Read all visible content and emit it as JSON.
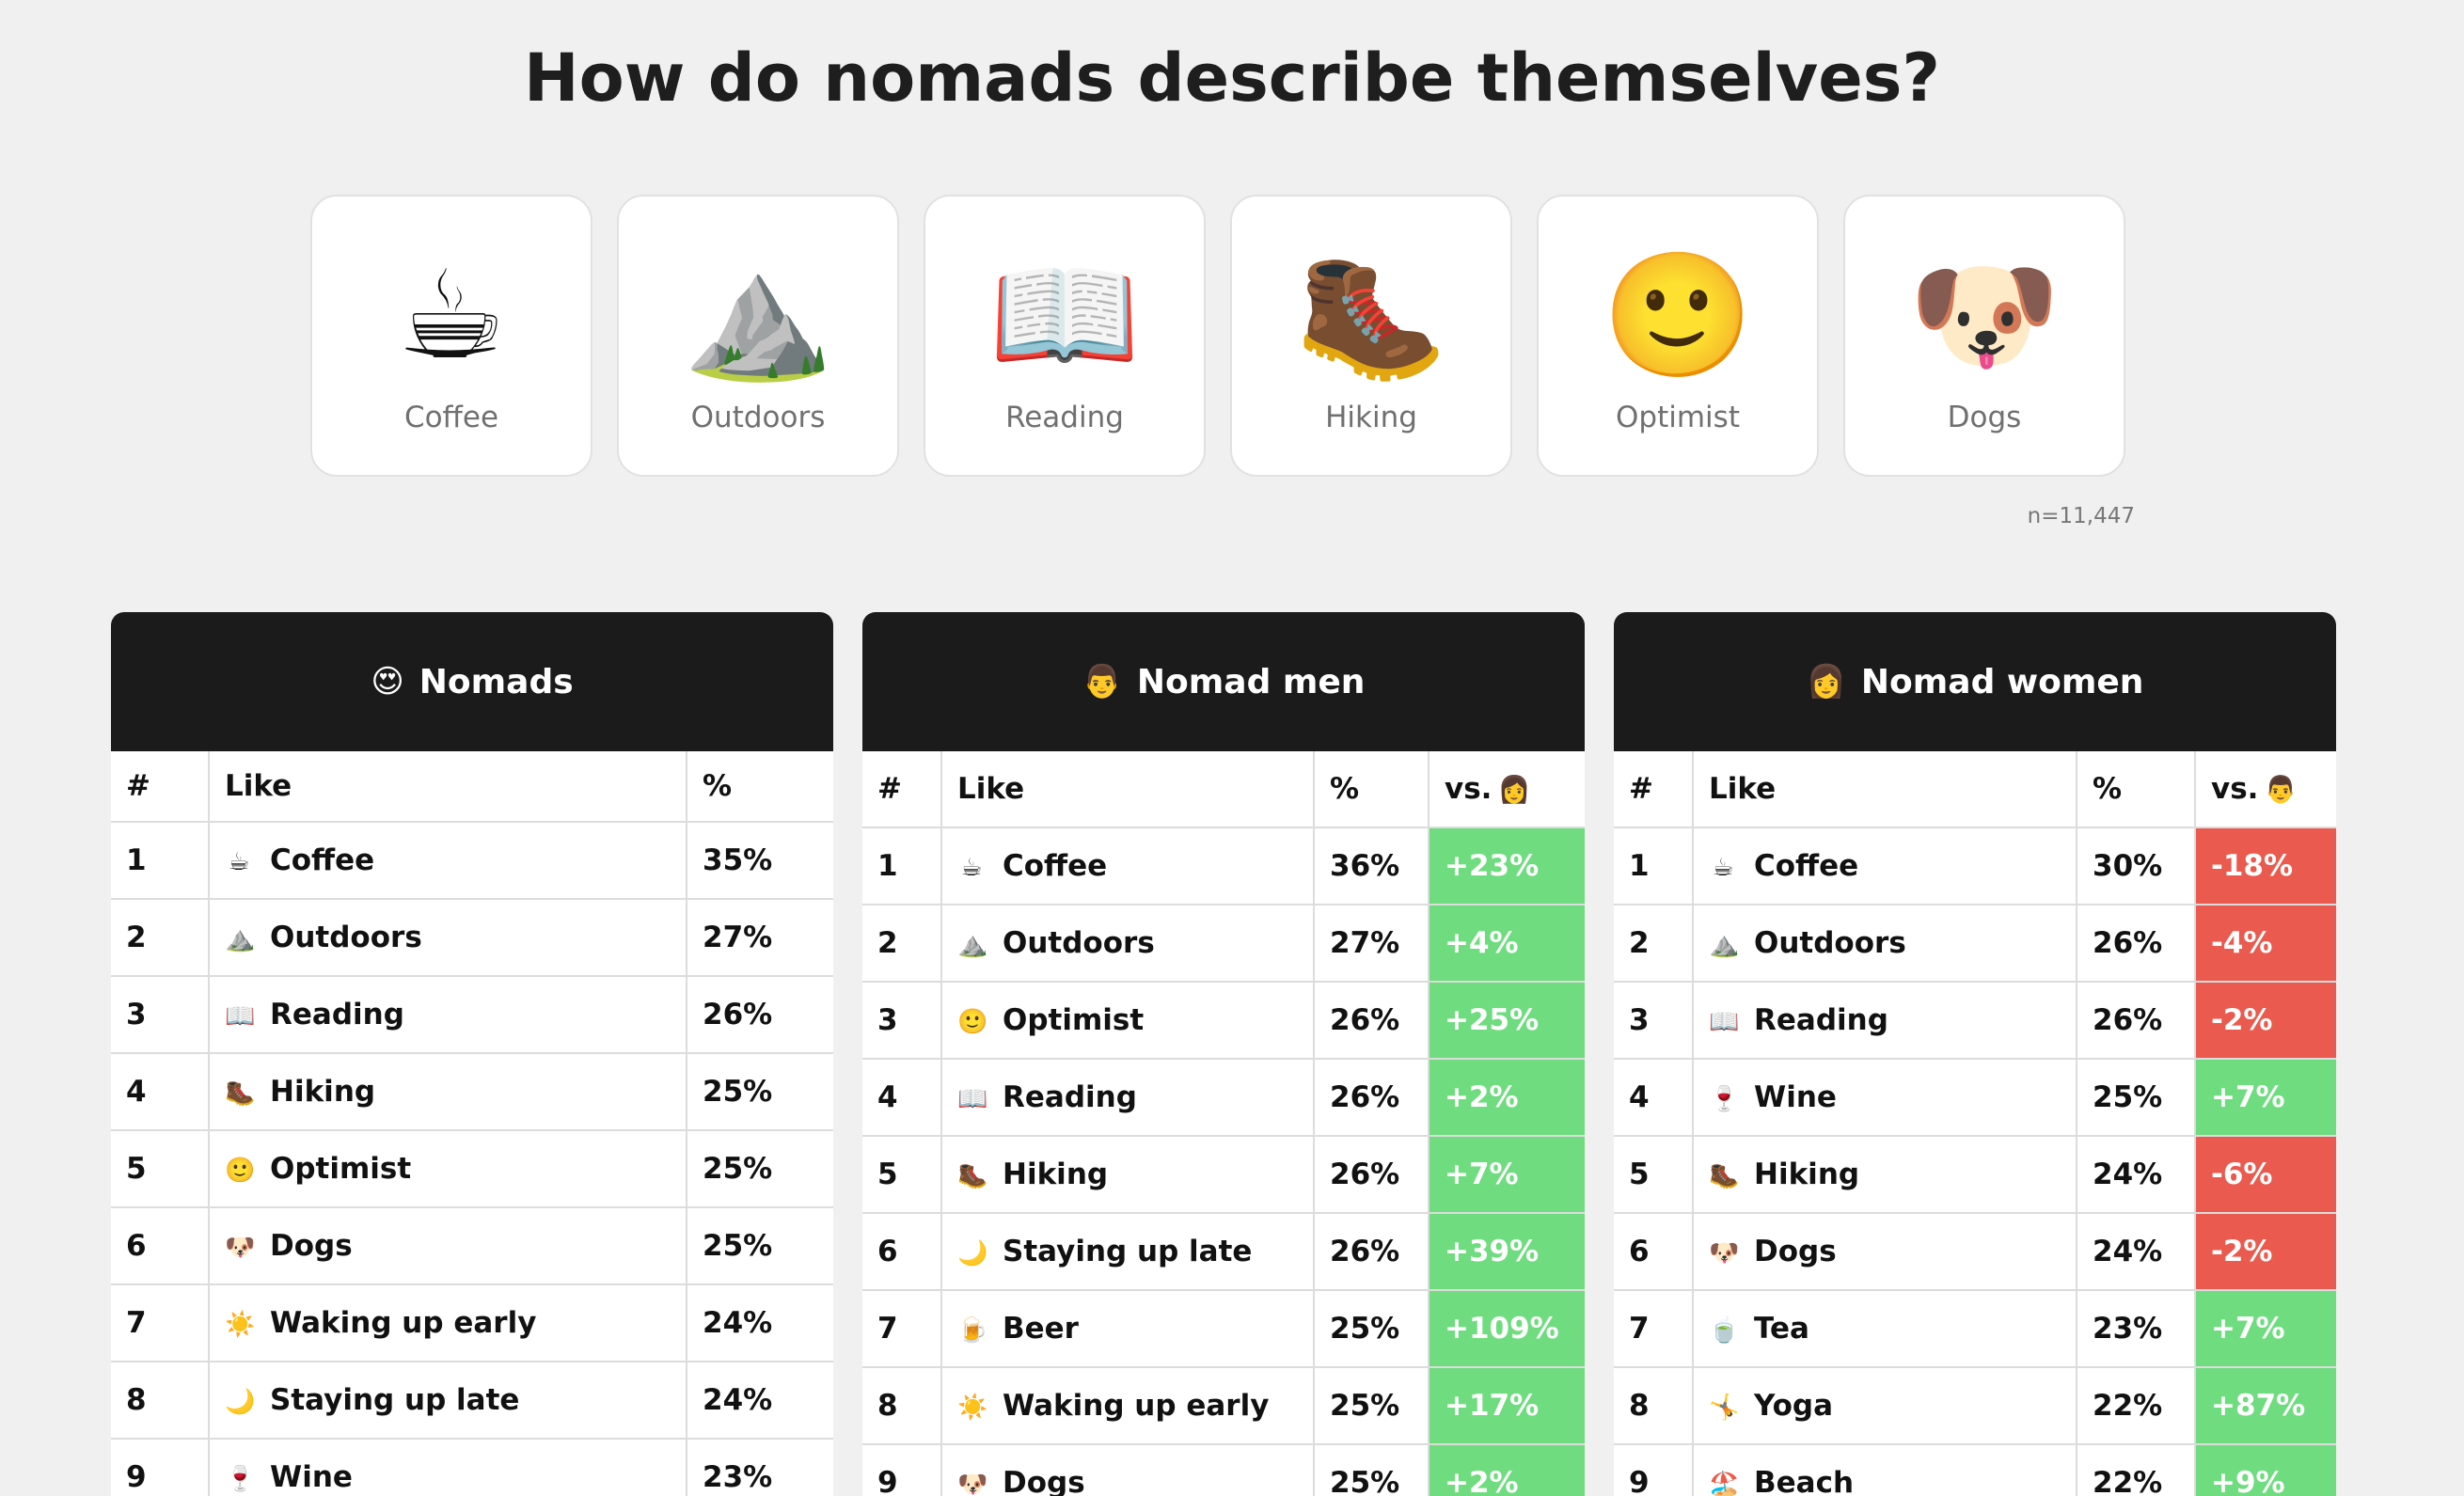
{
  "title": "How do nomads describe themselves?",
  "cards": [
    {
      "emoji": "☕",
      "icon": "coffee-icon",
      "label": "Coffee"
    },
    {
      "emoji": "⛰️",
      "icon": "mountain-icon",
      "label": "Outdoors"
    },
    {
      "emoji": "📖",
      "icon": "book-icon",
      "label": "Reading"
    },
    {
      "emoji": "🥾",
      "icon": "hiking-boot-icon",
      "label": "Hiking"
    },
    {
      "emoji": "🙂",
      "icon": "smile-icon",
      "label": "Optimist"
    },
    {
      "emoji": "🐶",
      "icon": "dog-icon",
      "label": "Dogs"
    }
  ],
  "sample_size": "n=11,447",
  "colors": {
    "positive": "#6fdc7f",
    "negative": "#ea5a4e",
    "header_bg": "#1b1b1b",
    "page_bg": "#f0f0f0"
  },
  "tables": {
    "nomads": {
      "emoji": "😍",
      "title": "Nomads",
      "headers": {
        "rank": "#",
        "like": "Like",
        "pct": "%"
      },
      "rows": [
        {
          "rank": "1",
          "emoji": "☕",
          "like": "Coffee",
          "pct": "35%"
        },
        {
          "rank": "2",
          "emoji": "⛰️",
          "like": "Outdoors",
          "pct": "27%"
        },
        {
          "rank": "3",
          "emoji": "📖",
          "like": "Reading",
          "pct": "26%"
        },
        {
          "rank": "4",
          "emoji": "🥾",
          "like": "Hiking",
          "pct": "25%"
        },
        {
          "rank": "5",
          "emoji": "🙂",
          "like": "Optimist",
          "pct": "25%"
        },
        {
          "rank": "6",
          "emoji": "🐶",
          "like": "Dogs",
          "pct": "25%"
        },
        {
          "rank": "7",
          "emoji": "☀️",
          "like": "Waking up early",
          "pct": "24%"
        },
        {
          "rank": "8",
          "emoji": "🌙",
          "like": "Staying up late",
          "pct": "24%"
        },
        {
          "rank": "9",
          "emoji": "🍷",
          "like": "Wine",
          "pct": "23%"
        }
      ]
    },
    "men": {
      "emoji": "👨",
      "title": "Nomad men",
      "headers": {
        "rank": "#",
        "like": "Like",
        "pct": "%",
        "vs": "vs.",
        "vs_emoji": "👩"
      },
      "rows": [
        {
          "rank": "1",
          "emoji": "☕",
          "like": "Coffee",
          "pct": "36%",
          "vs": "+23%",
          "positive": true
        },
        {
          "rank": "2",
          "emoji": "⛰️",
          "like": "Outdoors",
          "pct": "27%",
          "vs": "+4%",
          "positive": true
        },
        {
          "rank": "3",
          "emoji": "🙂",
          "like": "Optimist",
          "pct": "26%",
          "vs": "+25%",
          "positive": true
        },
        {
          "rank": "4",
          "emoji": "📖",
          "like": "Reading",
          "pct": "26%",
          "vs": "+2%",
          "positive": true
        },
        {
          "rank": "5",
          "emoji": "🥾",
          "like": "Hiking",
          "pct": "26%",
          "vs": "+7%",
          "positive": true
        },
        {
          "rank": "6",
          "emoji": "🌙",
          "like": "Staying up late",
          "pct": "26%",
          "vs": "+39%",
          "positive": true
        },
        {
          "rank": "7",
          "emoji": "🍺",
          "like": "Beer",
          "pct": "25%",
          "vs": "+109%",
          "positive": true
        },
        {
          "rank": "8",
          "emoji": "☀️",
          "like": "Waking up early",
          "pct": "25%",
          "vs": "+17%",
          "positive": true
        },
        {
          "rank": "9",
          "emoji": "🐶",
          "like": "Dogs",
          "pct": "25%",
          "vs": "+2%",
          "positive": true
        }
      ]
    },
    "women": {
      "emoji": "👩",
      "title": "Nomad women",
      "headers": {
        "rank": "#",
        "like": "Like",
        "pct": "%",
        "vs": "vs.",
        "vs_emoji": "👨"
      },
      "rows": [
        {
          "rank": "1",
          "emoji": "☕",
          "like": "Coffee",
          "pct": "30%",
          "vs": "-18%",
          "positive": false
        },
        {
          "rank": "2",
          "emoji": "⛰️",
          "like": "Outdoors",
          "pct": "26%",
          "vs": "-4%",
          "positive": false
        },
        {
          "rank": "3",
          "emoji": "📖",
          "like": "Reading",
          "pct": "26%",
          "vs": "-2%",
          "positive": false
        },
        {
          "rank": "4",
          "emoji": "🍷",
          "like": "Wine",
          "pct": "25%",
          "vs": "+7%",
          "positive": true
        },
        {
          "rank": "5",
          "emoji": "🥾",
          "like": "Hiking",
          "pct": "24%",
          "vs": "-6%",
          "positive": false
        },
        {
          "rank": "6",
          "emoji": "🐶",
          "like": "Dogs",
          "pct": "24%",
          "vs": "-2%",
          "positive": false
        },
        {
          "rank": "7",
          "emoji": "🍵",
          "like": "Tea",
          "pct": "23%",
          "vs": "+7%",
          "positive": true
        },
        {
          "rank": "8",
          "emoji": "🤸",
          "like": "Yoga",
          "pct": "22%",
          "vs": "+87%",
          "positive": true
        },
        {
          "rank": "9",
          "emoji": "🏖️",
          "like": "Beach",
          "pct": "22%",
          "vs": "+9%",
          "positive": true
        }
      ]
    }
  }
}
